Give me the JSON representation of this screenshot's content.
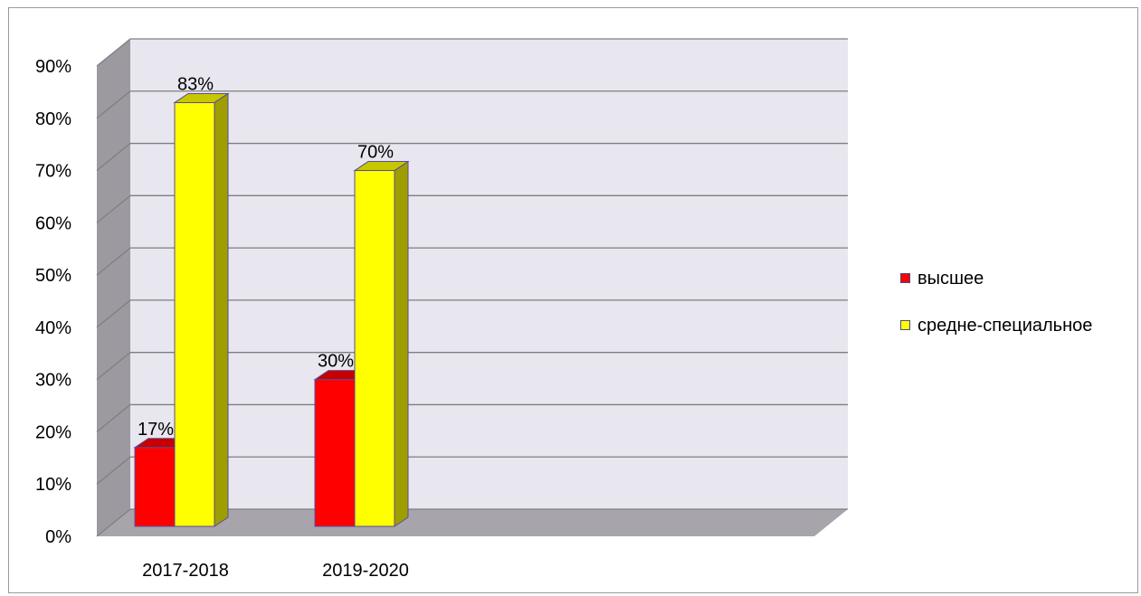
{
  "chart_data": {
    "type": "bar",
    "categories": [
      "2017-2018",
      "2019-2020"
    ],
    "series": [
      {
        "name": "высшее",
        "values": [
          17,
          30
        ],
        "labels": [
          "17%",
          "30%"
        ],
        "color": "#ff0000"
      },
      {
        "name": "средне-специальное",
        "values": [
          83,
          70
        ],
        "labels": [
          "83%",
          "70%"
        ],
        "color": "#ffff00"
      }
    ],
    "y_ticks": [
      "0%",
      "10%",
      "20%",
      "30%",
      "40%",
      "50%",
      "60%",
      "70%",
      "80%",
      "90%"
    ],
    "ylim": [
      0,
      90
    ],
    "grid": true,
    "legend_position": "right",
    "style": "3d-column",
    "colors": {
      "wall": "#e8e6ee",
      "floor": "#a7a5ab",
      "side_wall": "#9c9aa0",
      "gridline": "#7f7f7f"
    }
  }
}
